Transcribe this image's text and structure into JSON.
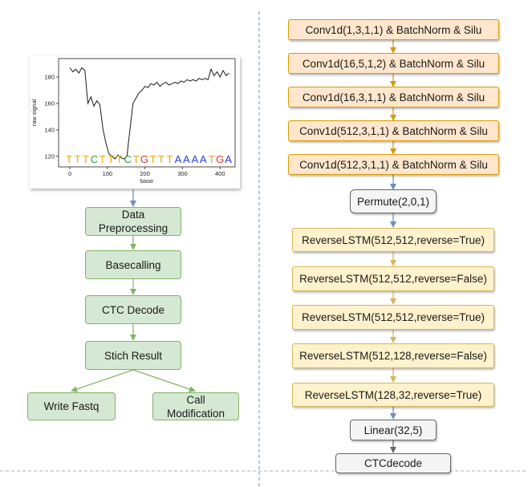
{
  "chart_data": {
    "type": "line",
    "xlabel": "base",
    "ylabel": "raw signal",
    "xlim": [
      -30,
      440
    ],
    "ylim": [
      112,
      194
    ],
    "xticks": [
      "0",
      "100",
      "200",
      "300",
      "400"
    ],
    "yticks": [
      "120",
      "140",
      "160",
      "180"
    ],
    "bases": [
      {
        "letter": "T",
        "color": "#f0a500"
      },
      {
        "letter": "T",
        "color": "#f0a500"
      },
      {
        "letter": "T",
        "color": "#f0a500"
      },
      {
        "letter": "C",
        "color": "#2e9e2e"
      },
      {
        "letter": "T",
        "color": "#f0a500"
      },
      {
        "letter": "T",
        "color": "#f0a500"
      },
      {
        "letter": "T",
        "color": "#f0a500"
      },
      {
        "letter": "C",
        "color": "#2e9e2e"
      },
      {
        "letter": "T",
        "color": "#f0a500"
      },
      {
        "letter": "G",
        "color": "#e03030"
      },
      {
        "letter": "T",
        "color": "#f0a500"
      },
      {
        "letter": "T",
        "color": "#f0a500"
      },
      {
        "letter": "T",
        "color": "#f0a500"
      },
      {
        "letter": "A",
        "color": "#2a3bd6"
      },
      {
        "letter": "A",
        "color": "#2a3bd6"
      },
      {
        "letter": "A",
        "color": "#2a3bd6"
      },
      {
        "letter": "A",
        "color": "#2a3bd6"
      },
      {
        "letter": "T",
        "color": "#f0a500"
      },
      {
        "letter": "G",
        "color": "#e03030"
      },
      {
        "letter": "A",
        "color": "#2a3bd6"
      }
    ],
    "signal": {
      "x": [
        0,
        8,
        16,
        24,
        32,
        40,
        48,
        56,
        64,
        72,
        80,
        88,
        96,
        104,
        112,
        120,
        128,
        136,
        144,
        152,
        160,
        168,
        176,
        184,
        192,
        200,
        208,
        216,
        224,
        232,
        240,
        248,
        256,
        264,
        272,
        280,
        288,
        296,
        304,
        312,
        320,
        328,
        336,
        344,
        352,
        360,
        368,
        376,
        384,
        392,
        400,
        408,
        416,
        424
      ],
      "y": [
        187,
        184,
        186,
        183,
        187,
        185,
        160,
        165,
        158,
        162,
        159,
        141,
        130,
        122,
        120,
        118,
        121,
        119,
        118,
        120,
        140,
        160,
        164,
        168,
        170,
        173,
        172,
        175,
        174,
        176,
        173,
        175,
        176,
        174,
        175,
        176,
        175,
        177,
        176,
        178,
        177,
        178,
        177,
        179,
        178,
        179,
        178,
        186,
        181,
        184,
        180,
        185,
        181,
        183
      ]
    },
    "signal_note": "values approximated from plot"
  },
  "flow": {
    "preprocessing": "Data Preprocessing",
    "basecalling": "Basecalling",
    "ctc_decode": "CTC Decode",
    "stitch": "Stich Result",
    "write_fastq": "Write Fastq",
    "call_modification": "Call Modification"
  },
  "model": {
    "conv_layers": [
      "Conv1d(1,3,1,1) & BatchNorm & Silu",
      "Conv1d(16,5,1,2) & BatchNorm & Silu",
      "Conv1d(16,3,1,1) & BatchNorm & Silu",
      "Conv1d(512,3,1,1) & BatchNorm & Silu",
      "Conv1d(512,3,1,1) & BatchNorm & Silu"
    ],
    "permute": "Permute(2,0,1)",
    "lstm_layers": [
      "ReverseLSTM(512,512,reverse=True)",
      "ReverseLSTM(512,512,reverse=False)",
      "ReverseLSTM(512,512,reverse=True)",
      "ReverseLSTM(512,128,reverse=False)",
      "ReverseLSTM(128,32,reverse=True)"
    ],
    "linear": "Linear(32,5)",
    "decode": "CTCdecode"
  },
  "colors": {
    "blue_arrow": "#6c8ebf",
    "green_arrow": "#82b366",
    "orange_arrow": "#d79b00",
    "yellow_arrow": "#d6b656",
    "gray_arrow": "#666666"
  }
}
